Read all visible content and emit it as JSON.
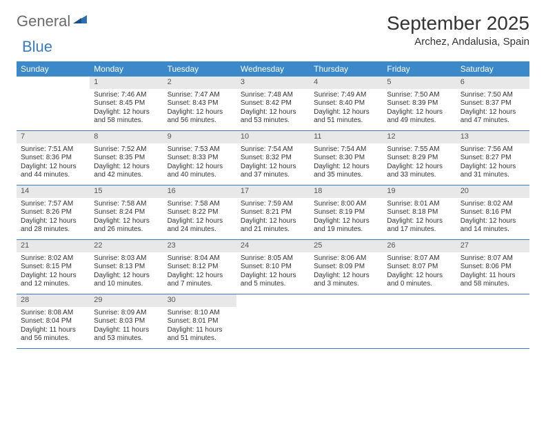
{
  "logo": {
    "text1": "General",
    "text2": "Blue"
  },
  "title": "September 2025",
  "location": "Archez, Andalusia, Spain",
  "colors": {
    "header_bg": "#3b89c9",
    "header_text": "#ffffff",
    "daynum_bg": "#e8e8e8",
    "daynum_text": "#555555",
    "row_border": "#3b7bbf",
    "body_text": "#333333",
    "logo_gray": "#6b6b6b",
    "logo_blue": "#3b7bbf",
    "page_bg": "#ffffff"
  },
  "typography": {
    "title_fontsize": 28,
    "location_fontsize": 15,
    "weekday_fontsize": 12,
    "daynum_fontsize": 11,
    "body_fontsize": 10,
    "logo_fontsize": 22
  },
  "layout": {
    "columns": 7,
    "rows": 5,
    "cell_min_height": 78
  },
  "weekdays": [
    "Sunday",
    "Monday",
    "Tuesday",
    "Wednesday",
    "Thursday",
    "Friday",
    "Saturday"
  ],
  "weeks": [
    [
      null,
      {
        "n": "1",
        "sunrise": "Sunrise: 7:46 AM",
        "sunset": "Sunset: 8:45 PM",
        "daylight": "Daylight: 12 hours and 58 minutes."
      },
      {
        "n": "2",
        "sunrise": "Sunrise: 7:47 AM",
        "sunset": "Sunset: 8:43 PM",
        "daylight": "Daylight: 12 hours and 56 minutes."
      },
      {
        "n": "3",
        "sunrise": "Sunrise: 7:48 AM",
        "sunset": "Sunset: 8:42 PM",
        "daylight": "Daylight: 12 hours and 53 minutes."
      },
      {
        "n": "4",
        "sunrise": "Sunrise: 7:49 AM",
        "sunset": "Sunset: 8:40 PM",
        "daylight": "Daylight: 12 hours and 51 minutes."
      },
      {
        "n": "5",
        "sunrise": "Sunrise: 7:50 AM",
        "sunset": "Sunset: 8:39 PM",
        "daylight": "Daylight: 12 hours and 49 minutes."
      },
      {
        "n": "6",
        "sunrise": "Sunrise: 7:50 AM",
        "sunset": "Sunset: 8:37 PM",
        "daylight": "Daylight: 12 hours and 47 minutes."
      }
    ],
    [
      {
        "n": "7",
        "sunrise": "Sunrise: 7:51 AM",
        "sunset": "Sunset: 8:36 PM",
        "daylight": "Daylight: 12 hours and 44 minutes."
      },
      {
        "n": "8",
        "sunrise": "Sunrise: 7:52 AM",
        "sunset": "Sunset: 8:35 PM",
        "daylight": "Daylight: 12 hours and 42 minutes."
      },
      {
        "n": "9",
        "sunrise": "Sunrise: 7:53 AM",
        "sunset": "Sunset: 8:33 PM",
        "daylight": "Daylight: 12 hours and 40 minutes."
      },
      {
        "n": "10",
        "sunrise": "Sunrise: 7:54 AM",
        "sunset": "Sunset: 8:32 PM",
        "daylight": "Daylight: 12 hours and 37 minutes."
      },
      {
        "n": "11",
        "sunrise": "Sunrise: 7:54 AM",
        "sunset": "Sunset: 8:30 PM",
        "daylight": "Daylight: 12 hours and 35 minutes."
      },
      {
        "n": "12",
        "sunrise": "Sunrise: 7:55 AM",
        "sunset": "Sunset: 8:29 PM",
        "daylight": "Daylight: 12 hours and 33 minutes."
      },
      {
        "n": "13",
        "sunrise": "Sunrise: 7:56 AM",
        "sunset": "Sunset: 8:27 PM",
        "daylight": "Daylight: 12 hours and 31 minutes."
      }
    ],
    [
      {
        "n": "14",
        "sunrise": "Sunrise: 7:57 AM",
        "sunset": "Sunset: 8:26 PM",
        "daylight": "Daylight: 12 hours and 28 minutes."
      },
      {
        "n": "15",
        "sunrise": "Sunrise: 7:58 AM",
        "sunset": "Sunset: 8:24 PM",
        "daylight": "Daylight: 12 hours and 26 minutes."
      },
      {
        "n": "16",
        "sunrise": "Sunrise: 7:58 AM",
        "sunset": "Sunset: 8:22 PM",
        "daylight": "Daylight: 12 hours and 24 minutes."
      },
      {
        "n": "17",
        "sunrise": "Sunrise: 7:59 AM",
        "sunset": "Sunset: 8:21 PM",
        "daylight": "Daylight: 12 hours and 21 minutes."
      },
      {
        "n": "18",
        "sunrise": "Sunrise: 8:00 AM",
        "sunset": "Sunset: 8:19 PM",
        "daylight": "Daylight: 12 hours and 19 minutes."
      },
      {
        "n": "19",
        "sunrise": "Sunrise: 8:01 AM",
        "sunset": "Sunset: 8:18 PM",
        "daylight": "Daylight: 12 hours and 17 minutes."
      },
      {
        "n": "20",
        "sunrise": "Sunrise: 8:02 AM",
        "sunset": "Sunset: 8:16 PM",
        "daylight": "Daylight: 12 hours and 14 minutes."
      }
    ],
    [
      {
        "n": "21",
        "sunrise": "Sunrise: 8:02 AM",
        "sunset": "Sunset: 8:15 PM",
        "daylight": "Daylight: 12 hours and 12 minutes."
      },
      {
        "n": "22",
        "sunrise": "Sunrise: 8:03 AM",
        "sunset": "Sunset: 8:13 PM",
        "daylight": "Daylight: 12 hours and 10 minutes."
      },
      {
        "n": "23",
        "sunrise": "Sunrise: 8:04 AM",
        "sunset": "Sunset: 8:12 PM",
        "daylight": "Daylight: 12 hours and 7 minutes."
      },
      {
        "n": "24",
        "sunrise": "Sunrise: 8:05 AM",
        "sunset": "Sunset: 8:10 PM",
        "daylight": "Daylight: 12 hours and 5 minutes."
      },
      {
        "n": "25",
        "sunrise": "Sunrise: 8:06 AM",
        "sunset": "Sunset: 8:09 PM",
        "daylight": "Daylight: 12 hours and 3 minutes."
      },
      {
        "n": "26",
        "sunrise": "Sunrise: 8:07 AM",
        "sunset": "Sunset: 8:07 PM",
        "daylight": "Daylight: 12 hours and 0 minutes."
      },
      {
        "n": "27",
        "sunrise": "Sunrise: 8:07 AM",
        "sunset": "Sunset: 8:06 PM",
        "daylight": "Daylight: 11 hours and 58 minutes."
      }
    ],
    [
      {
        "n": "28",
        "sunrise": "Sunrise: 8:08 AM",
        "sunset": "Sunset: 8:04 PM",
        "daylight": "Daylight: 11 hours and 56 minutes."
      },
      {
        "n": "29",
        "sunrise": "Sunrise: 8:09 AM",
        "sunset": "Sunset: 8:03 PM",
        "daylight": "Daylight: 11 hours and 53 minutes."
      },
      {
        "n": "30",
        "sunrise": "Sunrise: 8:10 AM",
        "sunset": "Sunset: 8:01 PM",
        "daylight": "Daylight: 11 hours and 51 minutes."
      },
      null,
      null,
      null,
      null
    ]
  ]
}
